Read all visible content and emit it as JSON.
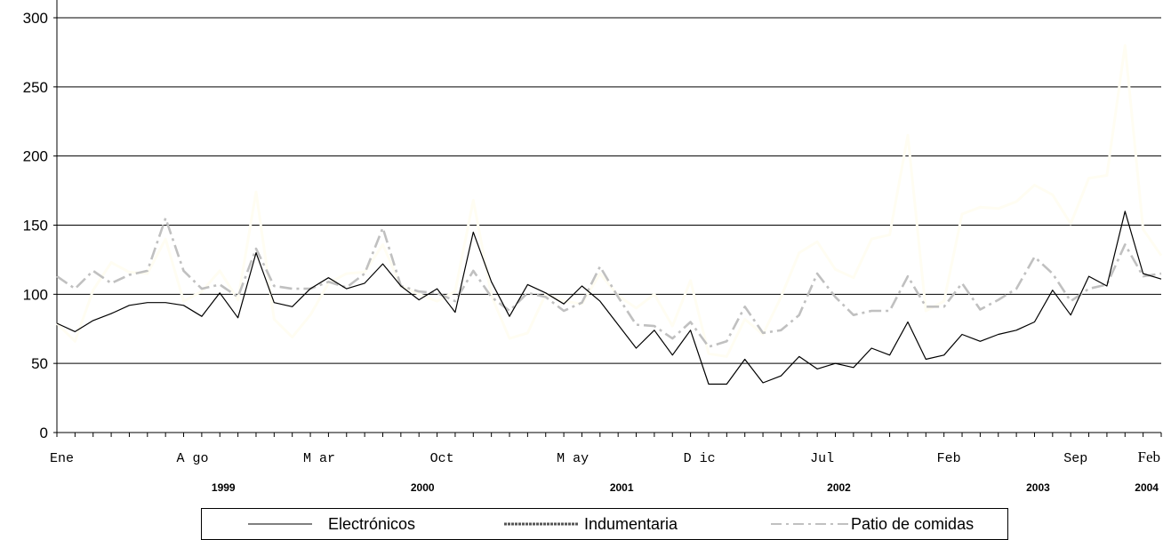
{
  "chart_data": {
    "type": "line",
    "ylim": [
      0,
      300
    ],
    "yticks": [
      0,
      50,
      100,
      150,
      200,
      250,
      300
    ],
    "ytick_labels": [
      "0",
      "50",
      "100",
      "150",
      "200",
      "250",
      "300"
    ],
    "grid": true,
    "n_points": 62,
    "x_tick_labels": [
      {
        "label": "Ene",
        "index": 0
      },
      {
        "label": "A go",
        "index": 7
      },
      {
        "label": "M ar",
        "index": 14
      },
      {
        "label": "Oct",
        "index": 21
      },
      {
        "label": "M ay",
        "index": 28
      },
      {
        "label": "D ic",
        "index": 35
      },
      {
        "label": "Jul",
        "index": 42
      },
      {
        "label": "Feb",
        "index": 49
      },
      {
        "label": "Sep",
        "index": 56
      },
      {
        "label": "Feb",
        "index": 61
      }
    ],
    "year_labels": [
      {
        "label": "1999",
        "index": 9
      },
      {
        "label": "2000",
        "index": 20
      },
      {
        "label": "2001",
        "index": 31
      },
      {
        "label": "2002",
        "index": 43
      },
      {
        "label": "2003",
        "index": 54
      },
      {
        "label": "2004",
        "index": 60
      }
    ],
    "legend_position": "bottom",
    "series": [
      {
        "name": "Electrónicos",
        "color": "#000000",
        "style": "solid-thin",
        "values": [
          79,
          73,
          81,
          86,
          92,
          94,
          94,
          92,
          84,
          101,
          83,
          130,
          94,
          91,
          104,
          112,
          104,
          108,
          122,
          106,
          96,
          104,
          87,
          145,
          109,
          84,
          107,
          101,
          93,
          106,
          95,
          78,
          61,
          74,
          56,
          74,
          35,
          35,
          53,
          36,
          41,
          55,
          46,
          50,
          47,
          61,
          56,
          80,
          53,
          56,
          71,
          66,
          71,
          74,
          80,
          103,
          85,
          113,
          106,
          160,
          115,
          111
        ]
      },
      {
        "name": "Indumentaria",
        "color": "#fffdf2",
        "style": "solid-thick",
        "values": [
          79,
          66,
          103,
          123,
          116,
          115,
          140,
          95,
          102,
          117,
          96,
          174,
          82,
          69,
          85,
          108,
          115,
          116,
          136,
          106,
          100,
          95,
          102,
          168,
          99,
          68,
          72,
          100,
          95,
          93,
          115,
          99,
          90,
          100,
          77,
          110,
          57,
          55,
          82,
          71,
          98,
          130,
          138,
          118,
          112,
          140,
          143,
          215,
          88,
          95,
          158,
          163,
          162,
          167,
          179,
          172,
          151,
          184,
          186,
          280,
          147,
          128
        ]
      },
      {
        "name": "Patio de comidas",
        "color": "#c0c0c0",
        "style": "dashdot",
        "values": [
          113,
          104,
          117,
          108,
          114,
          117,
          155,
          117,
          104,
          107,
          98,
          133,
          106,
          104,
          104,
          109,
          105,
          115,
          148,
          106,
          102,
          101,
          95,
          117,
          98,
          88,
          101,
          98,
          88,
          94,
          120,
          98,
          78,
          77,
          68,
          80,
          62,
          66,
          91,
          72,
          74,
          85,
          115,
          98,
          85,
          88,
          88,
          113,
          91,
          91,
          108,
          89,
          96,
          104,
          127,
          115,
          95,
          104,
          107,
          136,
          113,
          115
        ]
      }
    ]
  }
}
